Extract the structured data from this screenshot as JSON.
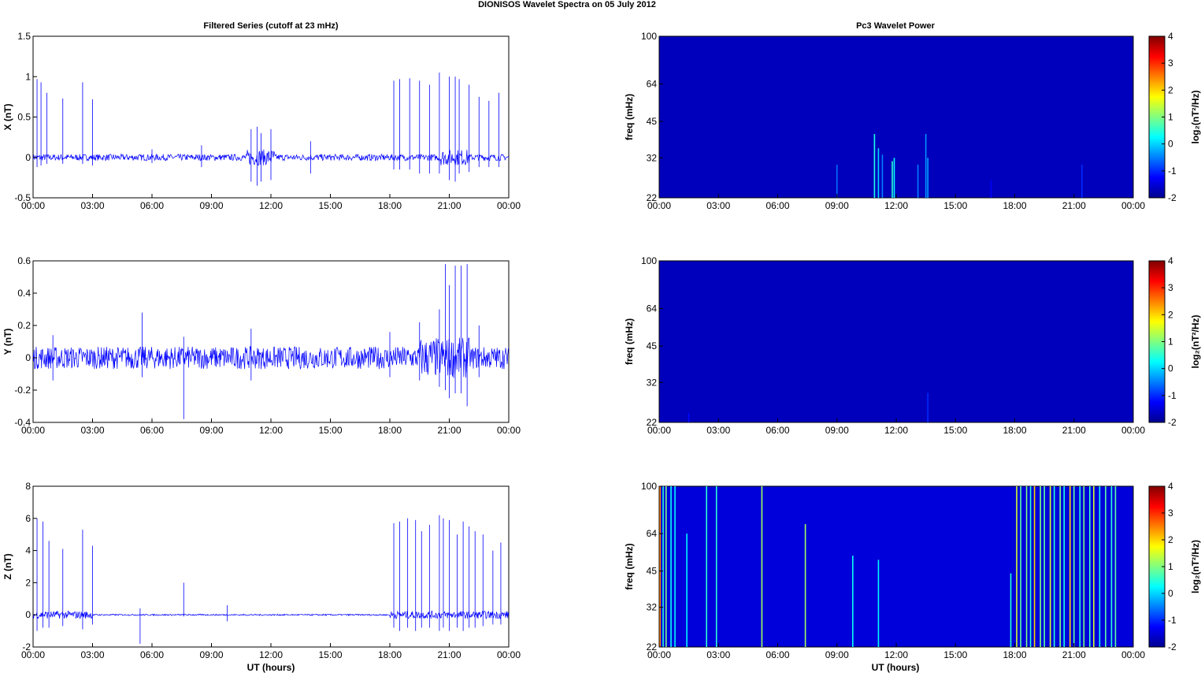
{
  "figure_title": "DIONISOS Wavelet Spectra on 05 July      2012",
  "left_title": "Filtered Series (cutoff at 23 mHz)",
  "right_title": "Pc3 Wavelet Power",
  "xlabel": "UT (hours)",
  "x_ticks": [
    "00:00",
    "03:00",
    "06:00",
    "09:00",
    "12:00",
    "15:00",
    "18:00",
    "21:00",
    "00:00"
  ],
  "colorbar_ticks": [
    "4",
    "3",
    "2",
    "1",
    "0",
    "-1",
    "-2"
  ],
  "colorbar_label": "log₂(nT²/Hz)",
  "colors": {
    "trace": "#0000ff",
    "background": "#00008f"
  },
  "chart_data": [
    {
      "type": "line",
      "component": "X",
      "ylabel": "X (nT)",
      "xlim": [
        0,
        24
      ],
      "ylim": [
        -0.5,
        1.5
      ],
      "y_ticks": [
        "1.5",
        "1",
        "0.5",
        "0",
        "-0.5"
      ],
      "baseline_noise": 0.04,
      "x": [
        0.2,
        0.4,
        0.7,
        1.5,
        2.5,
        3.0,
        6.0,
        8.5,
        11.0,
        11.3,
        11.5,
        12.0,
        14.0,
        18.2,
        18.5,
        19.0,
        19.5,
        20.0,
        20.5,
        21.0,
        21.3,
        21.5,
        22.0,
        22.5,
        23.0,
        23.5
      ],
      "y_max": [
        0.97,
        0.93,
        0.8,
        0.73,
        0.93,
        0.72,
        0.1,
        0.15,
        0.35,
        0.38,
        0.3,
        0.35,
        0.2,
        0.95,
        0.97,
        0.98,
        0.95,
        0.9,
        1.05,
        1.0,
        1.0,
        0.97,
        0.9,
        0.75,
        0.7,
        0.8
      ],
      "y_min": [
        -0.12,
        -0.1,
        -0.08,
        -0.08,
        -0.08,
        -0.1,
        -0.07,
        -0.12,
        -0.3,
        -0.35,
        -0.3,
        -0.28,
        -0.2,
        -0.15,
        -0.15,
        -0.15,
        -0.2,
        -0.2,
        -0.2,
        -0.28,
        -0.3,
        -0.2,
        -0.18,
        -0.12,
        -0.12,
        -0.12
      ]
    },
    {
      "type": "line",
      "component": "Y",
      "ylabel": "Y (nT)",
      "xlim": [
        0,
        24
      ],
      "ylim": [
        -0.4,
        0.6
      ],
      "y_ticks": [
        "0.6",
        "0.4",
        "0.2",
        "0",
        "-0.2",
        "-0.4"
      ],
      "baseline_noise": 0.07,
      "x": [
        1.0,
        5.5,
        7.6,
        11.0,
        18.0,
        19.5,
        20.5,
        20.8,
        21.0,
        21.3,
        21.6,
        21.9,
        22.5
      ],
      "y_max": [
        0.14,
        0.28,
        0.13,
        0.18,
        0.16,
        0.22,
        0.3,
        0.58,
        0.45,
        0.57,
        0.57,
        0.58,
        0.2
      ],
      "y_min": [
        -0.14,
        -0.12,
        -0.38,
        -0.14,
        -0.12,
        -0.14,
        -0.18,
        -0.2,
        -0.25,
        -0.22,
        -0.22,
        -0.3,
        -0.12
      ]
    },
    {
      "type": "line",
      "component": "Z",
      "ylabel": "Z (nT)",
      "xlim": [
        0,
        24
      ],
      "ylim": [
        -2,
        8
      ],
      "y_ticks": [
        "8",
        "6",
        "4",
        "2",
        "0",
        "-2"
      ],
      "baseline_noise": 0.15,
      "x": [
        0.2,
        0.5,
        0.8,
        1.5,
        2.5,
        3.0,
        5.4,
        7.6,
        9.8,
        18.2,
        18.5,
        18.9,
        19.3,
        19.6,
        20.0,
        20.5,
        20.7,
        21.0,
        21.4,
        21.7,
        22.0,
        22.3,
        22.7,
        23.2,
        23.6
      ],
      "y_max": [
        6.0,
        5.8,
        4.6,
        4.1,
        5.3,
        4.3,
        0.4,
        2.0,
        0.6,
        5.7,
        5.8,
        6.0,
        5.9,
        5.2,
        5.6,
        6.2,
        6.0,
        5.9,
        5.0,
        5.8,
        5.5,
        5.2,
        5.0,
        4.0,
        4.5
      ],
      "y_min": [
        -1.0,
        -0.8,
        -0.8,
        -0.7,
        -0.9,
        -0.6,
        -1.8,
        -0.1,
        -0.4,
        -0.8,
        -1.0,
        -0.8,
        -1.0,
        -0.8,
        -0.8,
        -1.0,
        -0.8,
        -1.0,
        -0.8,
        -1.0,
        -0.8,
        -0.8,
        -0.7,
        -0.6,
        -0.6
      ]
    },
    {
      "type": "heatmap",
      "component": "X",
      "ylabel": "freq (mHz)",
      "y_ticks": [
        "100",
        "64",
        "45",
        "32",
        "22"
      ],
      "clim": [
        -2,
        4
      ],
      "background_power": -1.7,
      "x": [
        9.0,
        10.9,
        11.1,
        11.3,
        11.8,
        11.9,
        13.1,
        13.5,
        13.6,
        16.8,
        21.4
      ],
      "top_freq": [
        30,
        40,
        35,
        33,
        31,
        32,
        30,
        40,
        32,
        26,
        30
      ],
      "power": [
        -0.6,
        0.4,
        0.0,
        -0.5,
        0.5,
        0.2,
        -0.5,
        -0.4,
        -0.3,
        -1.3,
        -1.0
      ]
    },
    {
      "type": "heatmap",
      "component": "Y",
      "ylabel": "freq (mHz)",
      "y_ticks": [
        "100",
        "64",
        "45",
        "32",
        "22"
      ],
      "clim": [
        -2,
        4
      ],
      "background_power": -1.7,
      "x": [
        1.5,
        13.6
      ],
      "top_freq": [
        24,
        29
      ],
      "power": [
        -1.2,
        -1.0
      ]
    },
    {
      "type": "heatmap",
      "component": "Z",
      "ylabel": "freq (mHz)",
      "y_ticks": [
        "100",
        "64",
        "45",
        "32",
        "22"
      ],
      "clim": [
        -2,
        4
      ],
      "background_power": -1.5,
      "x": [
        0.05,
        0.2,
        0.35,
        0.6,
        0.8,
        1.4,
        2.4,
        2.9,
        5.2,
        7.4,
        9.8,
        11.1,
        17.8,
        18.1,
        18.3,
        18.6,
        18.8,
        19.0,
        19.3,
        19.5,
        19.8,
        20.0,
        20.3,
        20.5,
        20.8,
        21.0,
        21.3,
        21.5,
        21.8,
        22.0,
        22.3,
        22.6,
        22.9,
        23.1
      ],
      "top_freq": [
        100,
        100,
        100,
        100,
        100,
        64,
        100,
        100,
        100,
        70,
        52,
        50,
        44,
        100,
        100,
        100,
        100,
        100,
        100,
        100,
        100,
        100,
        100,
        100,
        100,
        100,
        100,
        100,
        100,
        100,
        100,
        100,
        100,
        100
      ],
      "power": [
        2.5,
        0.5,
        1.0,
        0.3,
        0.2,
        0.2,
        0.5,
        0.5,
        1.2,
        1.2,
        0.3,
        0.2,
        0.5,
        1.5,
        0.8,
        1.0,
        0.5,
        2.0,
        1.0,
        0.8,
        1.5,
        0.5,
        1.0,
        0.4,
        2.0,
        0.8,
        0.5,
        1.0,
        0.6,
        1.5,
        0.4,
        0.8,
        0.5,
        0.8
      ]
    }
  ]
}
